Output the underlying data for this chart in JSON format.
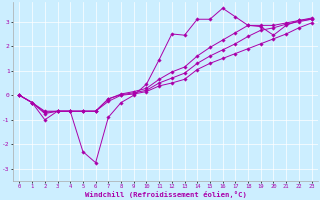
{
  "xlabel": "Windchill (Refroidissement éolien,°C)",
  "background_color": "#cceeff",
  "line_color": "#aa00aa",
  "xlim": [
    -0.5,
    23.5
  ],
  "ylim": [
    -3.5,
    3.8
  ],
  "xticks": [
    0,
    1,
    2,
    3,
    4,
    5,
    6,
    7,
    8,
    9,
    10,
    11,
    12,
    13,
    14,
    15,
    16,
    17,
    18,
    19,
    20,
    21,
    22,
    23
  ],
  "yticks": [
    -3,
    -2,
    -1,
    0,
    1,
    2,
    3
  ],
  "line1_y": [
    0,
    -0.3,
    -1.0,
    -0.65,
    -0.65,
    -2.3,
    -2.75,
    -0.9,
    -0.3,
    0.0,
    0.45,
    1.45,
    2.5,
    2.45,
    3.1,
    3.1,
    3.55,
    3.2,
    2.85,
    2.8,
    2.45,
    2.85,
    3.05,
    3.15
  ],
  "line2_y": [
    0,
    -0.3,
    -0.65,
    -0.65,
    -0.65,
    -0.65,
    -0.65,
    -0.25,
    0.0,
    0.05,
    0.15,
    0.38,
    0.5,
    0.65,
    1.05,
    1.3,
    1.5,
    1.7,
    1.9,
    2.1,
    2.3,
    2.5,
    2.75,
    2.95
  ],
  "line3_y": [
    0,
    -0.3,
    -0.75,
    -0.65,
    -0.65,
    -0.65,
    -0.65,
    -0.15,
    0.05,
    0.15,
    0.28,
    0.65,
    0.95,
    1.15,
    1.6,
    1.95,
    2.25,
    2.55,
    2.85,
    2.85,
    2.85,
    2.95,
    3.05,
    3.1
  ],
  "line4_y": [
    0,
    -0.3,
    -0.7,
    -0.65,
    -0.65,
    -0.65,
    -0.65,
    -0.15,
    0.02,
    0.1,
    0.2,
    0.5,
    0.7,
    0.9,
    1.3,
    1.6,
    1.85,
    2.1,
    2.4,
    2.65,
    2.75,
    2.9,
    3.0,
    3.1
  ]
}
